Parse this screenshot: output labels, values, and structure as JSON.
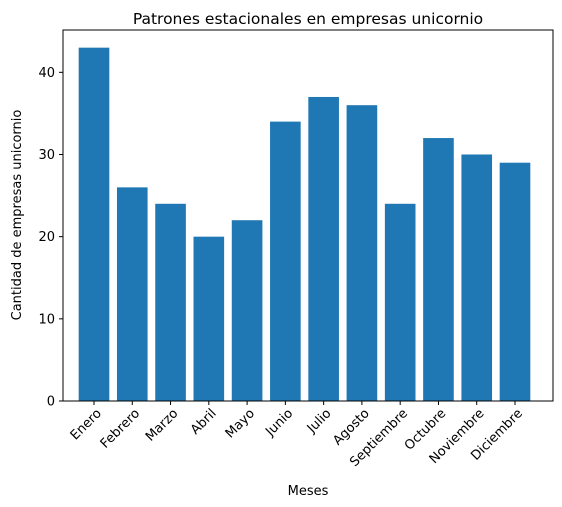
{
  "chart_data": {
    "type": "bar",
    "title": "Patrones estacionales en empresas unicornio",
    "xlabel": "Meses",
    "ylabel": "Cantidad de empresas unicornio",
    "categories": [
      "Enero",
      "Febrero",
      "Marzo",
      "Abril",
      "Mayo",
      "Junio",
      "Julio",
      "Agosto",
      "Septiembre",
      "Octubre",
      "Noviembre",
      "Diciembre"
    ],
    "values": [
      43,
      26,
      24,
      20,
      22,
      34,
      37,
      36,
      24,
      32,
      30,
      29
    ],
    "yticks": [
      0,
      10,
      20,
      30,
      40
    ],
    "ylim": [
      0,
      45.15
    ],
    "bar_color": "#1f77b4",
    "grid": false,
    "x_tick_rotation_deg": 45
  }
}
